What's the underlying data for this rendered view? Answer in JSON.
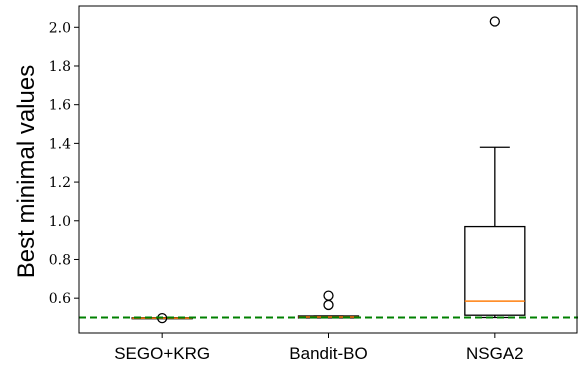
{
  "chart_data": {
    "type": "box",
    "xlabel": "",
    "ylabel": "Best minimal values",
    "ylim": [
      0.42,
      2.11
    ],
    "yticks": [
      0.6,
      0.8,
      1.0,
      1.2,
      1.4,
      1.6,
      1.8,
      2.0
    ],
    "ytick_labels": [
      "0.6",
      "0.8",
      "1.0",
      "1.2",
      "1.4",
      "1.6",
      "1.8",
      "2.0"
    ],
    "categories": [
      "SEGO+KRG",
      "Bandit-BO",
      "NSGA2"
    ],
    "boxes": [
      {
        "q1": 0.497,
        "median": 0.497,
        "q3": 0.499,
        "whisker_low": 0.497,
        "whisker_high": 0.499,
        "outliers": [
          0.497
        ]
      },
      {
        "q1": 0.498,
        "median": 0.503,
        "q3": 0.508,
        "whisker_low": 0.498,
        "whisker_high": 0.508,
        "outliers": [
          0.565,
          0.613
        ]
      },
      {
        "q1": 0.512,
        "median": 0.585,
        "q3": 0.97,
        "whisker_low": 0.5,
        "whisker_high": 1.38,
        "outliers": [
          2.03
        ]
      }
    ],
    "reference_line": {
      "y": 0.5,
      "style": "dashed",
      "color": "#008000"
    },
    "colors": {
      "box": "#000000",
      "median": "#ff7f0e",
      "reference": "#008000"
    }
  }
}
